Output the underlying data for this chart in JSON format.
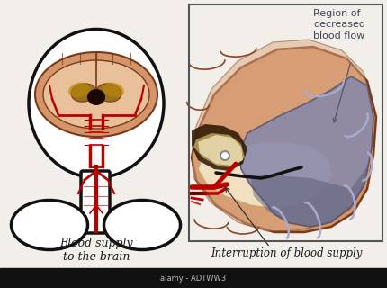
{
  "bg_color": "#f2eeea",
  "title_left": "Blood supply\nto the brain",
  "title_right": "Interruption of blood supply",
  "annotation_right": "Region of\ndecreased\nblood flow",
  "watermark": "alamy - ADTWW3",
  "brain_fill": "#d4956a",
  "brain_cortex": "#c8856a",
  "brain_inner": "#e8c09a",
  "brain_stroke": "#7a3a18",
  "blood_red": "#bb0000",
  "dark_red": "#7a0000",
  "ischemia_color": "#8888aa",
  "ischemia_dark": "#555570",
  "ischemia_light": "#aaaacc",
  "head_stroke": "#111111",
  "ventricle_dark": "#9a7020",
  "ventricle_black": "#1a0800",
  "box_color": "#555555",
  "bottom_bar": "#111111",
  "bottom_text": "#bbbbbb",
  "text_color": "#1a1a1a",
  "annotation_color": "#555566",
  "white_matter": "#f0e0c0",
  "brain_bg": "#ffffff"
}
